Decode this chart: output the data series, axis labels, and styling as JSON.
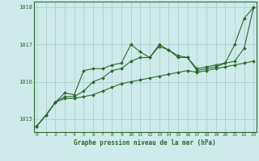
{
  "title": "Graphe pression niveau de la mer (hPa)",
  "x": [
    0,
    1,
    2,
    3,
    4,
    5,
    6,
    7,
    8,
    9,
    10,
    11,
    12,
    13,
    14,
    15,
    16,
    17,
    18,
    19,
    20,
    21,
    22,
    23
  ],
  "y_line1": [
    1014.8,
    1015.1,
    1015.45,
    1015.55,
    1015.55,
    1015.6,
    1015.65,
    1015.75,
    1015.85,
    1015.95,
    1016.0,
    1016.05,
    1016.1,
    1016.15,
    1016.2,
    1016.25,
    1016.3,
    1016.25,
    1016.3,
    1016.35,
    1016.4,
    1016.45,
    1016.5,
    1016.55
  ],
  "y_line2": [
    1014.8,
    1015.1,
    1015.45,
    1015.7,
    1015.65,
    1016.3,
    1016.35,
    1016.35,
    1016.45,
    1016.5,
    1017.0,
    1016.8,
    1016.65,
    1017.0,
    1016.85,
    1016.7,
    1016.65,
    1016.3,
    1016.35,
    1016.4,
    1016.5,
    1017.0,
    1017.7,
    1018.0
  ],
  "y_line3": [
    1014.8,
    1015.1,
    1015.45,
    1015.6,
    1015.6,
    1015.75,
    1016.0,
    1016.1,
    1016.3,
    1016.35,
    1016.55,
    1016.65,
    1016.65,
    1016.95,
    1016.85,
    1016.65,
    1016.65,
    1016.35,
    1016.4,
    1016.45,
    1016.5,
    1016.55,
    1016.9,
    1018.0
  ],
  "line_color": "#2d6a2d",
  "bg_color": "#ceeaea",
  "grid_color": "#aed0d0",
  "ylim_min": 1014.65,
  "ylim_max": 1018.15,
  "yticks": [
    1015,
    1016,
    1017,
    1018
  ],
  "xlim_min": -0.3,
  "xlim_max": 23.3
}
